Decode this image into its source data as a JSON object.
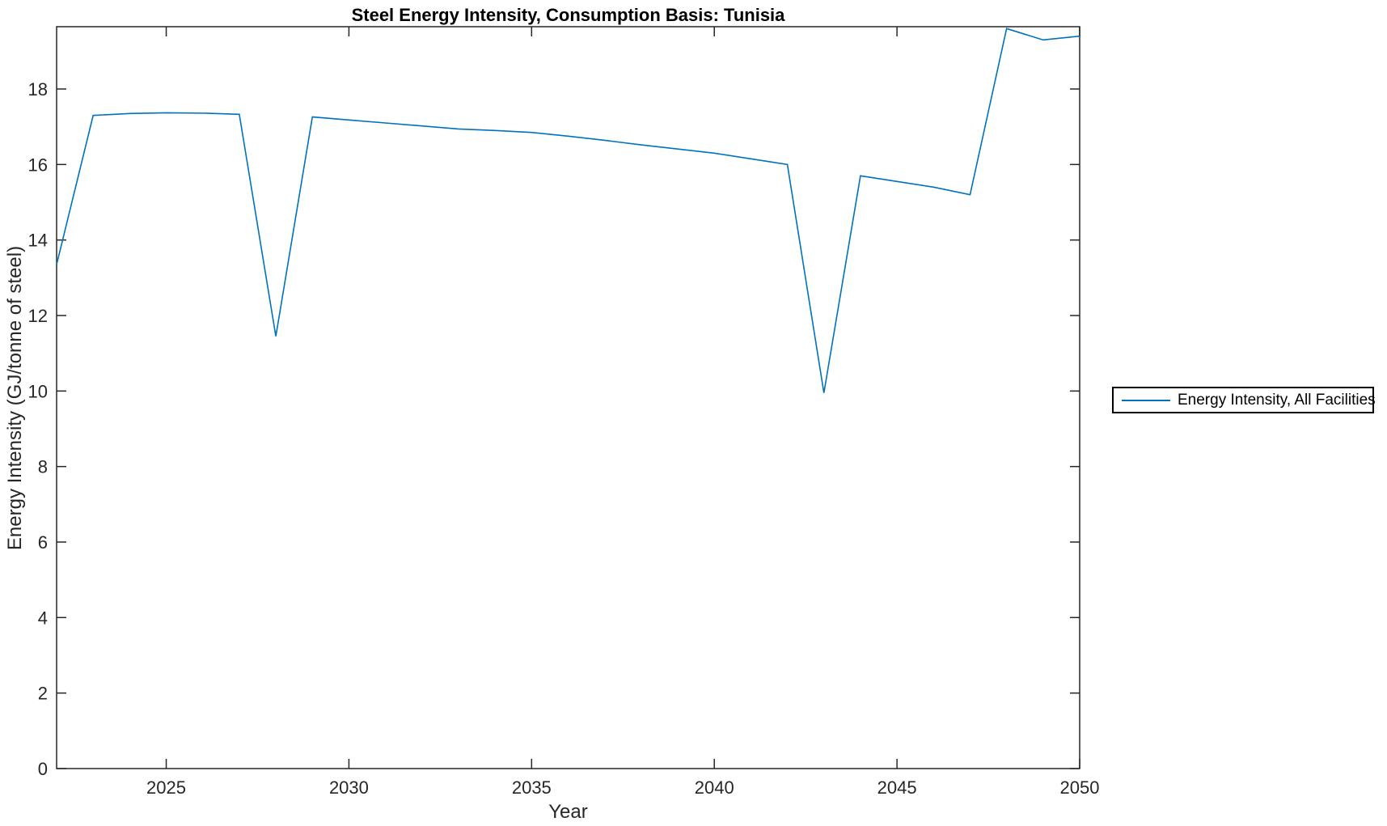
{
  "figure": {
    "title": "Steel Energy Intensity, Consumption Basis: Tunisia",
    "xlabel": "Year",
    "ylabel": "Energy Intensity (GJ/tonne of steel)"
  },
  "legend": {
    "entries": [
      {
        "label": "Energy Intensity, All Facilities",
        "color": "#0072BD"
      }
    ]
  },
  "chart_data": {
    "type": "line",
    "title": "Steel Energy Intensity, Consumption Basis: Tunisia",
    "xlabel": "Year",
    "ylabel": "Energy Intensity (GJ/tonne of steel)",
    "xlim": [
      2022,
      2050
    ],
    "ylim": [
      0,
      19.65
    ],
    "x_ticks": [
      2025,
      2030,
      2035,
      2040,
      2045,
      2050
    ],
    "y_ticks": [
      0,
      2,
      4,
      6,
      8,
      10,
      12,
      14,
      16,
      18
    ],
    "grid": false,
    "legend_position": "right-outside",
    "series": [
      {
        "name": "Energy Intensity, All Facilities",
        "color": "#0072BD",
        "x": [
          2022,
          2023,
          2024,
          2025,
          2026,
          2027,
          2028,
          2029,
          2030,
          2031,
          2032,
          2033,
          2034,
          2035,
          2036,
          2037,
          2038,
          2039,
          2040,
          2041,
          2042,
          2043,
          2044,
          2045,
          2046,
          2047,
          2048,
          2049,
          2050
        ],
        "y": [
          13.35,
          17.3,
          17.35,
          17.37,
          17.36,
          17.33,
          11.45,
          17.26,
          17.18,
          17.1,
          17.02,
          16.94,
          16.9,
          16.85,
          16.75,
          16.64,
          16.52,
          16.41,
          16.3,
          16.15,
          16.0,
          9.95,
          15.7,
          15.55,
          15.4,
          15.2,
          19.6,
          19.3,
          19.4
        ]
      }
    ]
  }
}
